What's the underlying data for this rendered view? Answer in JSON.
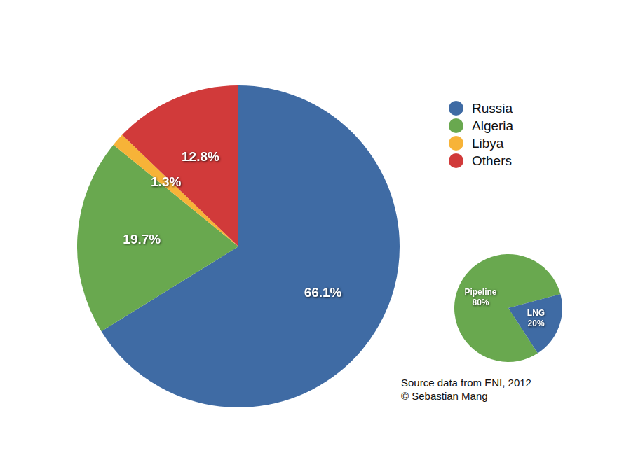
{
  "chart_data": [
    {
      "type": "pie",
      "categories": [
        "Russia",
        "Algeria",
        "Libya",
        "Others"
      ],
      "values": [
        66.1,
        19.7,
        1.3,
        12.8
      ],
      "value_labels": [
        "66.1%",
        "19.7%",
        "1.3%",
        "12.8%"
      ],
      "colors": [
        "#3f6ba4",
        "#69a84f",
        "#f7b338",
        "#d13a3a"
      ],
      "data_labels": true,
      "legend": "upper right"
    },
    {
      "type": "pie",
      "categories": [
        "Pipeline",
        "LNG"
      ],
      "values": [
        80,
        20
      ],
      "value_labels": [
        "80%",
        "20%"
      ],
      "colors": [
        "#69a84f",
        "#3f6ba4"
      ],
      "data_labels": true,
      "annotations": [
        "Source data from ENI, 2012",
        "© Sebastian Mang"
      ]
    }
  ]
}
